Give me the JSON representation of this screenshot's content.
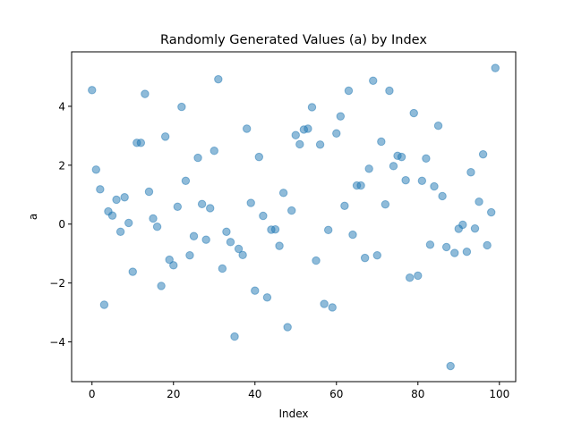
{
  "chart_data": {
    "type": "scatter",
    "title": "Randomly Generated Values (a) by Index",
    "xlabel": "Index",
    "ylabel": "a",
    "xlim": [
      -5,
      104
    ],
    "ylim": [
      -5.35,
      5.85
    ],
    "xticks": [
      0,
      20,
      40,
      60,
      80,
      100
    ],
    "yticks": [
      -4,
      -2,
      0,
      2,
      4
    ],
    "xtick_labels": [
      "0",
      "20",
      "40",
      "60",
      "80",
      "100"
    ],
    "ytick_labels": [
      "−4",
      "−2",
      "0",
      "2",
      "4"
    ],
    "grid": false,
    "marker_color": "#1f77b4",
    "marker_alpha": 0.5,
    "series": [
      {
        "x": [
          0,
          1,
          2,
          3,
          4,
          5,
          6,
          7,
          8,
          9,
          10,
          11,
          12,
          13,
          14,
          15,
          16,
          17,
          18,
          19,
          20,
          21,
          22,
          23,
          24,
          25,
          26,
          27,
          28,
          29,
          30,
          31,
          32,
          33,
          34,
          35,
          36,
          37,
          38,
          39,
          40,
          41,
          42,
          43,
          44,
          45,
          46,
          47,
          48,
          49,
          50,
          51,
          52,
          53,
          54,
          55,
          56,
          57,
          58,
          59,
          60,
          61,
          62,
          63,
          64,
          65,
          66,
          67,
          68,
          69,
          70,
          71,
          72,
          73,
          74,
          75,
          76,
          77,
          78,
          79,
          80,
          81,
          82,
          83,
          84,
          85,
          86,
          87,
          88,
          89,
          90,
          91,
          92,
          93,
          94,
          95,
          96,
          97,
          98,
          99
        ],
        "y": [
          4.55,
          1.85,
          1.18,
          -2.74,
          0.43,
          0.29,
          0.83,
          -0.26,
          0.91,
          0.04,
          -1.62,
          2.76,
          2.76,
          4.42,
          1.1,
          0.19,
          -0.09,
          -2.1,
          2.97,
          -1.21,
          -1.4,
          0.59,
          3.98,
          1.47,
          -1.06,
          -0.41,
          2.25,
          0.68,
          -0.53,
          0.54,
          2.49,
          4.92,
          -1.51,
          -0.26,
          -0.61,
          -3.82,
          -0.84,
          -1.05,
          3.24,
          0.72,
          -2.26,
          2.28,
          0.28,
          -2.49,
          -0.19,
          -0.18,
          -0.74,
          1.06,
          -3.5,
          0.46,
          3.02,
          2.71,
          3.21,
          3.24,
          3.97,
          -1.24,
          2.7,
          -2.71,
          -0.2,
          -2.83,
          3.08,
          3.66,
          0.62,
          4.53,
          -0.36,
          1.31,
          1.31,
          -1.15,
          1.88,
          4.87,
          -1.06,
          2.8,
          0.67,
          4.53,
          1.97,
          2.32,
          2.28,
          1.49,
          -1.82,
          3.77,
          -1.75,
          1.47,
          2.23,
          -0.7,
          1.28,
          3.34,
          0.95,
          -0.78,
          -4.82,
          -0.98,
          -0.16,
          -0.02,
          -0.94,
          1.76,
          -0.15,
          0.76,
          2.37,
          -0.72,
          0.4,
          5.3
        ]
      }
    ]
  }
}
